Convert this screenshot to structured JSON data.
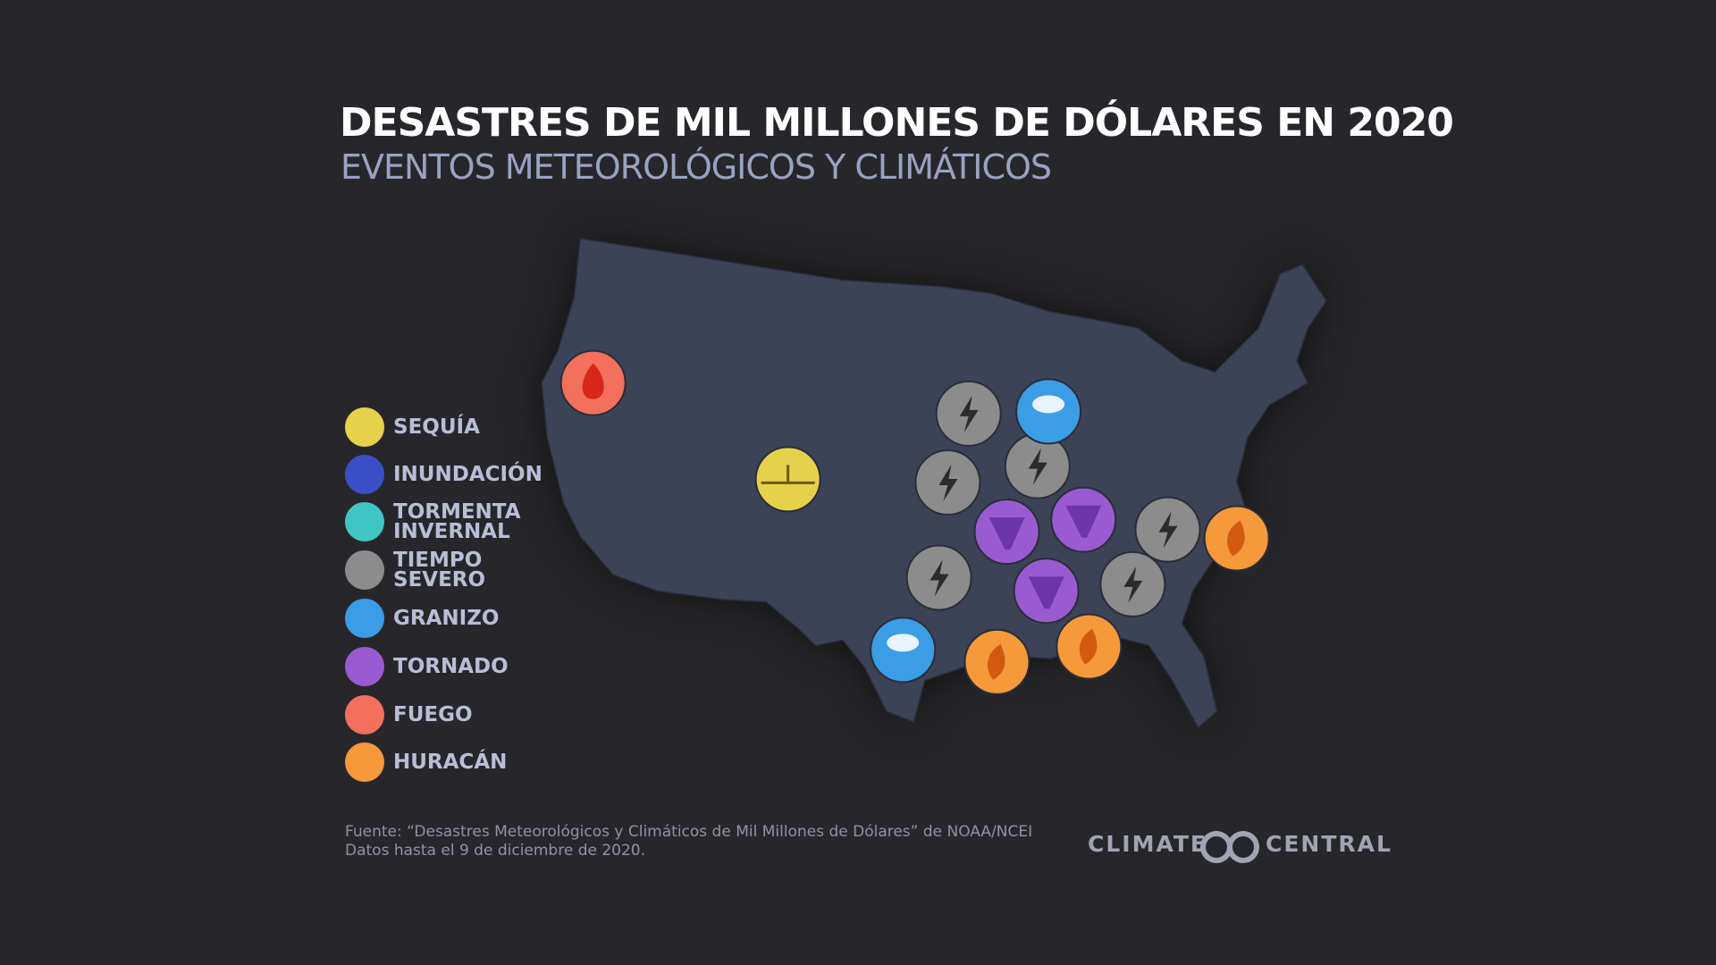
{
  "header": {
    "title": "DESASTRES DE MIL MILLONES DE DÓLARES EN 2020",
    "subtitle": "EVENTOS METEOROLÓGICOS Y CLIMÁTICOS"
  },
  "legend": {
    "items": [
      {
        "label": "SEQUÍA",
        "color": "#e6d24a"
      },
      {
        "label": "INUNDACIÓN",
        "color": "#3a4fc6"
      },
      {
        "label": "TORMENTA INVERNAL",
        "color": "#3fc6c4"
      },
      {
        "label": "TIEMPO SEVERO",
        "color": "#8c8c8c"
      },
      {
        "label": "GRANIZO",
        "color": "#3b9de6"
      },
      {
        "label": "TORNADO",
        "color": "#9a5bd2"
      },
      {
        "label": "FUEGO",
        "color": "#f2705c"
      },
      {
        "label": "HURACÁN",
        "color": "#f5993a"
      }
    ]
  },
  "footer": {
    "source": "Fuente: “Desastres Meteorológicos y Climáticos de Mil Millones de Dólares” de NOAA/NCEI",
    "note": "Datos hasta el 9 de diciembre de 2020."
  },
  "logo": {
    "left": "CLIMATE",
    "right": "CENTRAL"
  }
}
